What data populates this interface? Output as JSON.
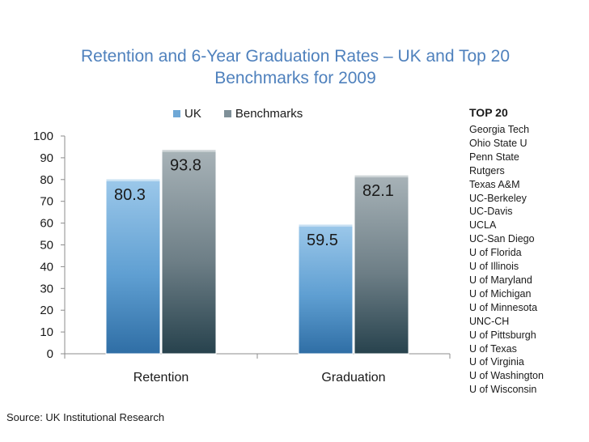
{
  "colors": {
    "uk": "#6fa8d6",
    "benchmarks": "#7f9098",
    "title": "#4f81bd"
  },
  "source": "Source: UK Institutional Research",
  "top20": {
    "title": "TOP 20",
    "schools": [
      "Georgia Tech",
      "Ohio State U",
      "Penn State",
      "Rutgers",
      "Texas A&M",
      "UC-Berkeley",
      "UC-Davis",
      "UCLA",
      "UC-San Diego",
      "U of Florida",
      "U of Illinois",
      "U of Maryland",
      "U of Michigan",
      "U of Minnesota",
      "UNC-CH",
      "U of Pittsburgh",
      "U of Texas",
      "U of Virginia",
      "U of Washington",
      "U of Wisconsin"
    ]
  },
  "chart_data": {
    "type": "bar",
    "title_lines": [
      "Retention and 6-Year Graduation Rates – UK and Top 20",
      "Benchmarks for 2009"
    ],
    "categories": [
      "Retention",
      "Graduation"
    ],
    "series": [
      {
        "name": "UK",
        "values": [
          80.3,
          59.5
        ]
      },
      {
        "name": "Benchmarks",
        "values": [
          93.8,
          82.1
        ]
      }
    ],
    "value_labels": [
      [
        "80.3",
        "59.5"
      ],
      [
        "93.8",
        "82.1"
      ]
    ],
    "ylim": [
      0,
      100
    ],
    "yticks": [
      0,
      10,
      20,
      30,
      40,
      50,
      60,
      70,
      80,
      90,
      100
    ],
    "xlabel": "",
    "ylabel": "",
    "legend": "top"
  }
}
